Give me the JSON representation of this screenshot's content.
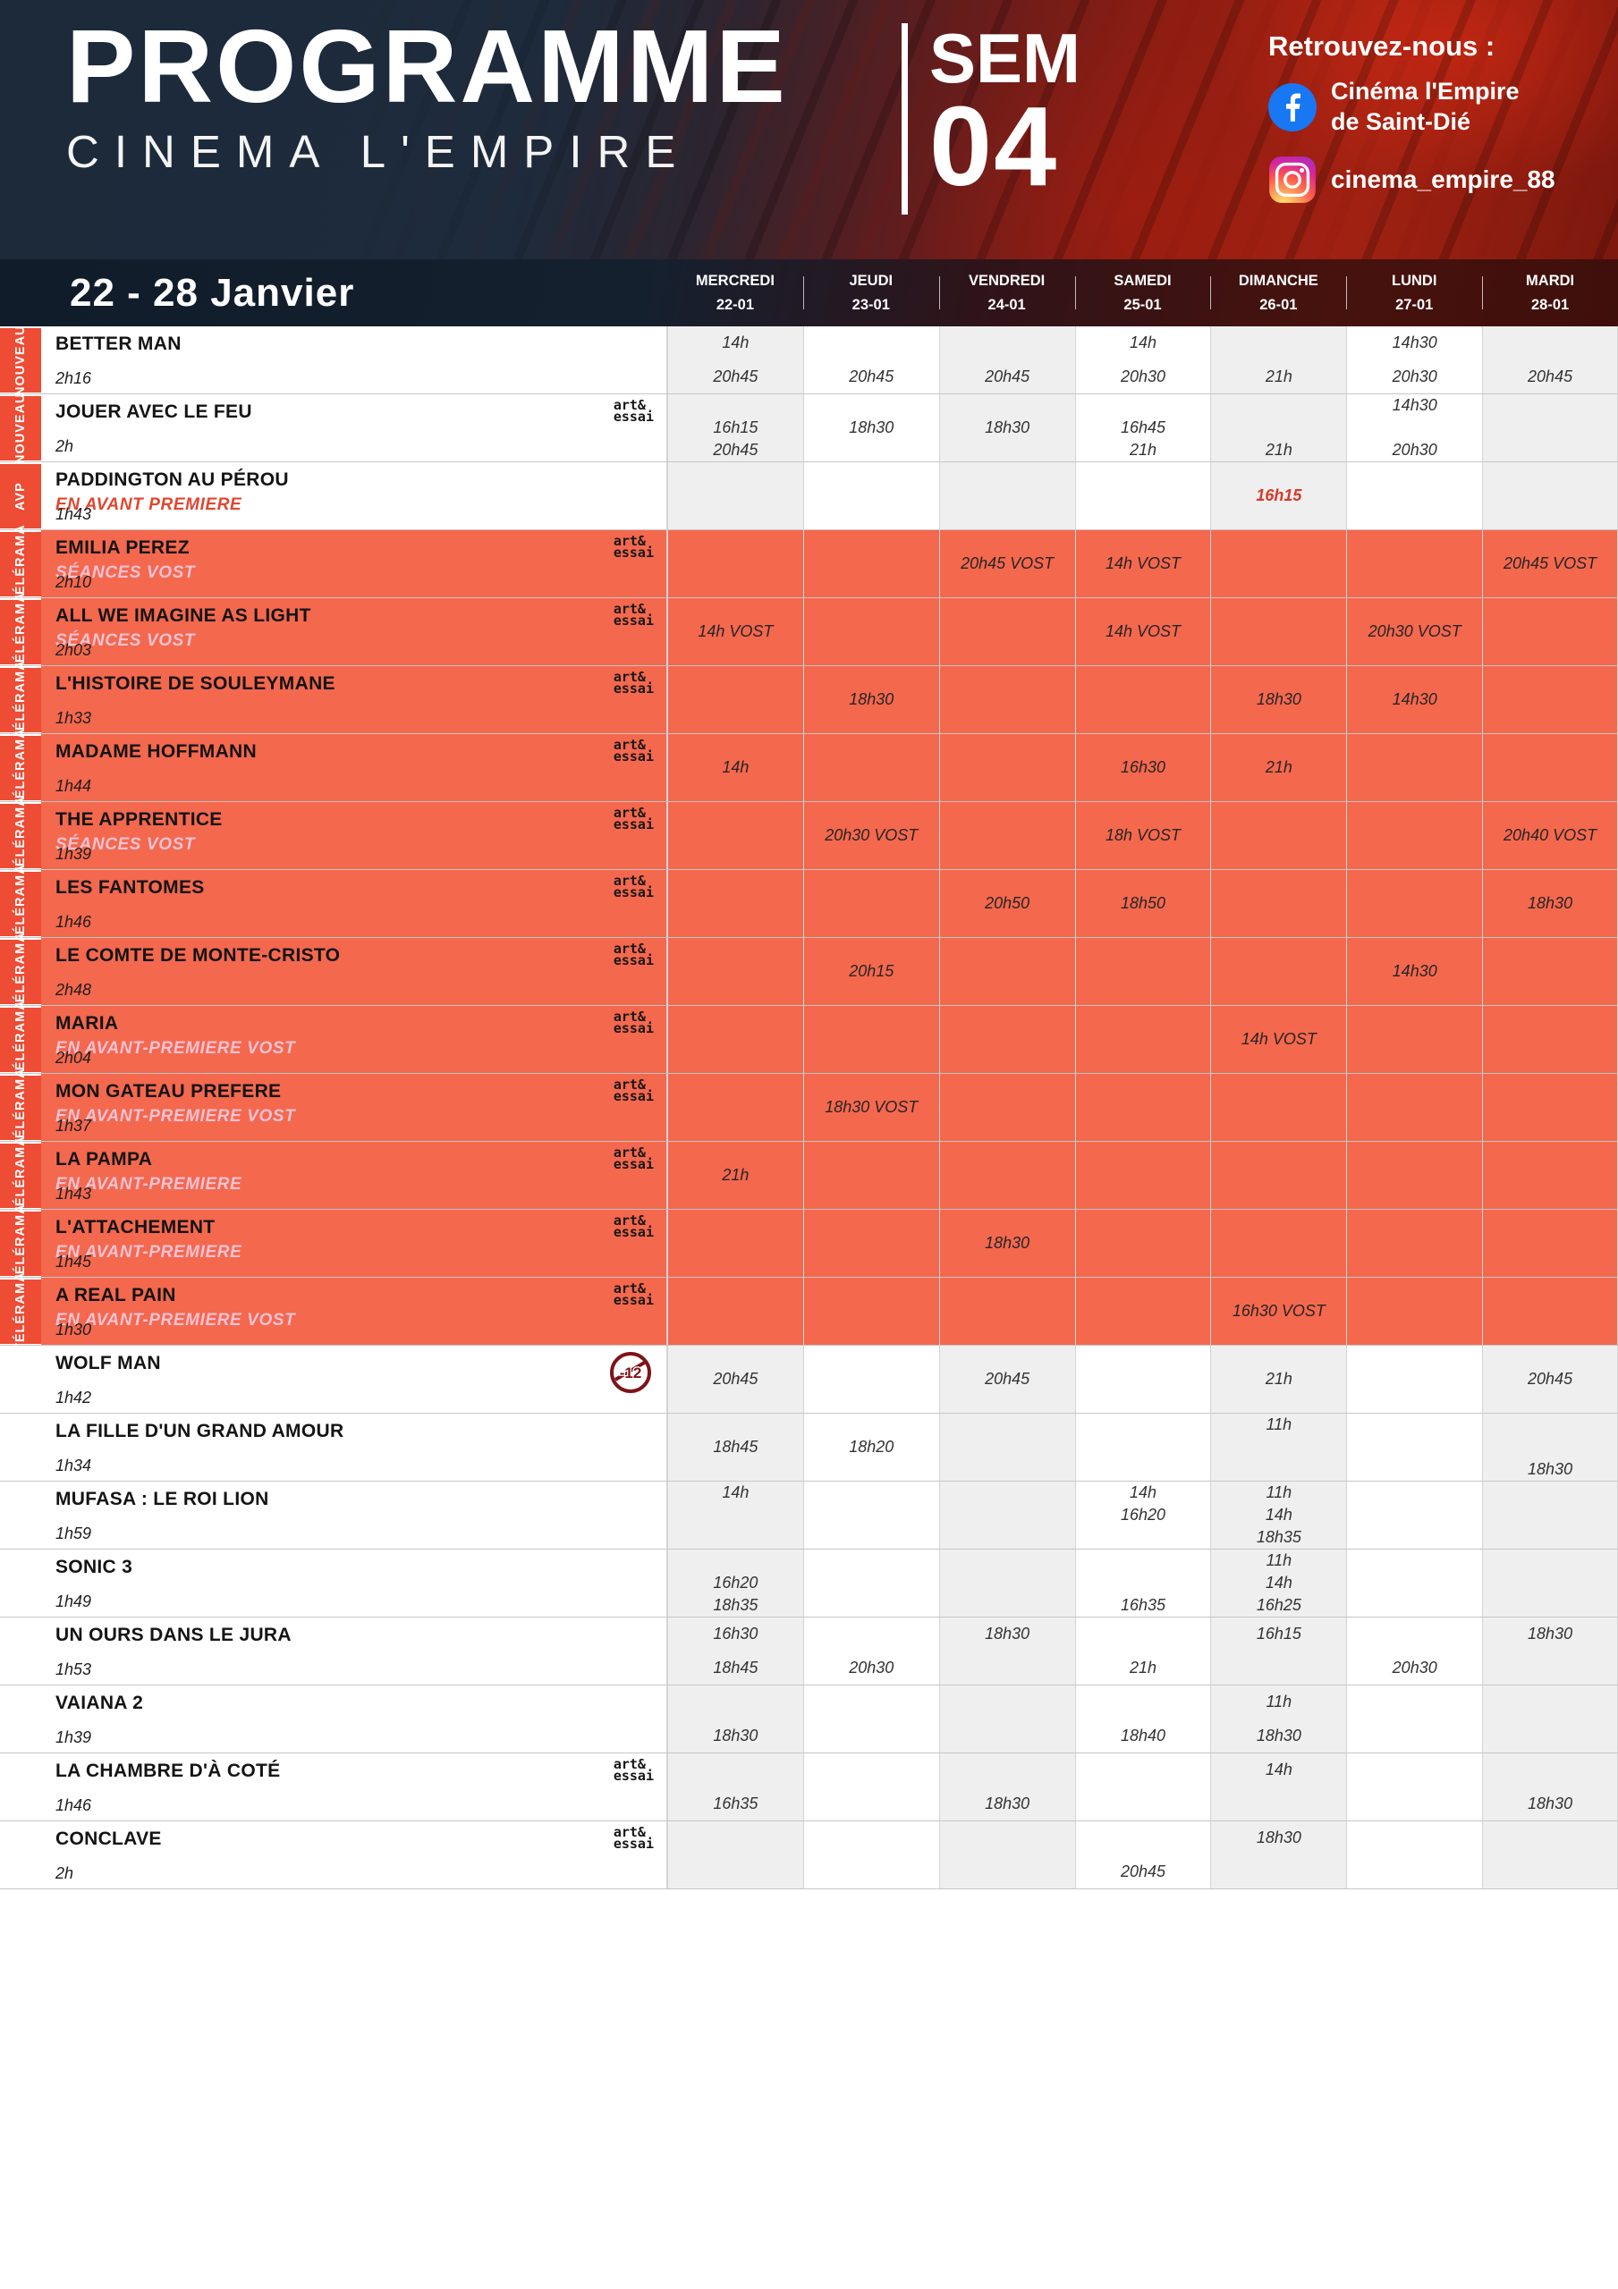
{
  "header": {
    "title": "PROGRAMME",
    "subtitle": "CINEMA L'EMPIRE",
    "week_label": "SEM",
    "week_number": "04",
    "social_heading": "Retrouvez-nous :",
    "facebook_lines": [
      "Cinéma l'Empire",
      "de Saint-Dié"
    ],
    "instagram_name": "cinema_empire_88"
  },
  "date_range": "22 - 28 Janvier",
  "days": [
    {
      "name": "MERCREDI",
      "date": "22-01"
    },
    {
      "name": "JEUDI",
      "date": "23-01"
    },
    {
      "name": "VENDREDI",
      "date": "24-01"
    },
    {
      "name": "SAMEDI",
      "date": "25-01"
    },
    {
      "name": "DIMANCHE",
      "date": "26-01"
    },
    {
      "name": "LUNDI",
      "date": "27-01"
    },
    {
      "name": "MARDI",
      "date": "28-01"
    }
  ],
  "art_essai_label": [
    "art&",
    "essai"
  ],
  "colors": {
    "coral_row": "#f4684e",
    "tag_red": "#ee4c35",
    "navy": "#1d2b3b",
    "accent_red": "#d63a28",
    "subtitle_pink": "#f8c2d2",
    "facebook_blue": "#1877f2"
  },
  "films": [
    {
      "title": "BETTER MAN",
      "tag": "NOUVEAU",
      "subtitle": "",
      "duration": "2h16",
      "art_essai": false,
      "rating": "",
      "section": "white",
      "highlight": false,
      "times": [
        [
          "14h",
          "20h45"
        ],
        [
          "",
          "20h45"
        ],
        [
          "",
          "20h45"
        ],
        [
          "14h",
          "20h30"
        ],
        [
          "",
          "21h"
        ],
        [
          "14h30",
          "20h30"
        ],
        [
          "",
          "20h45"
        ]
      ]
    },
    {
      "title": "JOUER AVEC LE FEU",
      "tag": "NOUVEAU",
      "subtitle": "",
      "duration": "2h",
      "art_essai": true,
      "rating": "",
      "section": "white",
      "highlight": false,
      "times": [
        [
          "",
          "16h15",
          "20h45"
        ],
        [
          "",
          "18h30",
          ""
        ],
        [
          "",
          "18h30",
          ""
        ],
        [
          "",
          "16h45",
          "21h"
        ],
        [
          "",
          "",
          "21h"
        ],
        [
          "14h30",
          "",
          "20h30"
        ],
        [
          "",
          "",
          ""
        ]
      ]
    },
    {
      "title": "PADDINGTON AU PÉROU",
      "tag": "AVP",
      "subtitle": "EN AVANT PREMIERE",
      "duration": "1h43",
      "art_essai": false,
      "rating": "",
      "section": "white",
      "highlight": true,
      "times": [
        [
          ""
        ],
        [
          ""
        ],
        [
          ""
        ],
        [
          ""
        ],
        [
          "16h15"
        ],
        [
          ""
        ],
        [
          ""
        ]
      ]
    },
    {
      "title": "EMILIA PEREZ",
      "tag": "TÉLÉRAMA",
      "subtitle": "SÉANCES VOST",
      "duration": "2h10",
      "art_essai": true,
      "rating": "",
      "section": "coral",
      "highlight": false,
      "times": [
        [
          ""
        ],
        [
          ""
        ],
        [
          "20h45 VOST"
        ],
        [
          "14h VOST"
        ],
        [
          ""
        ],
        [
          ""
        ],
        [
          "20h45 VOST"
        ]
      ]
    },
    {
      "title": "ALL WE IMAGINE AS LIGHT",
      "tag": "TÉLÉRAMA",
      "subtitle": "SÉANCES VOST",
      "duration": "2h03",
      "art_essai": true,
      "rating": "",
      "section": "coral",
      "highlight": false,
      "times": [
        [
          "14h VOST"
        ],
        [
          ""
        ],
        [
          ""
        ],
        [
          "14h VOST"
        ],
        [
          ""
        ],
        [
          "20h30 VOST"
        ],
        [
          ""
        ]
      ]
    },
    {
      "title": "L'HISTOIRE DE SOULEYMANE",
      "tag": "TÉLÉRAMA",
      "subtitle": "",
      "duration": "1h33",
      "art_essai": true,
      "rating": "",
      "section": "coral",
      "highlight": false,
      "times": [
        [
          ""
        ],
        [
          "18h30"
        ],
        [
          ""
        ],
        [
          ""
        ],
        [
          "18h30"
        ],
        [
          "14h30"
        ],
        [
          ""
        ]
      ]
    },
    {
      "title": "MADAME HOFFMANN",
      "tag": "TÉLÉRAMA",
      "subtitle": "",
      "duration": "1h44",
      "art_essai": true,
      "rating": "",
      "section": "coral",
      "highlight": false,
      "times": [
        [
          "14h"
        ],
        [
          ""
        ],
        [
          ""
        ],
        [
          "16h30"
        ],
        [
          "21h"
        ],
        [
          ""
        ],
        [
          ""
        ]
      ]
    },
    {
      "title": "THE APPRENTICE",
      "tag": "TÉLÉRAMA",
      "subtitle": "SÉANCES VOST",
      "duration": "1h39",
      "art_essai": true,
      "rating": "",
      "section": "coral",
      "highlight": false,
      "times": [
        [
          ""
        ],
        [
          "20h30 VOST"
        ],
        [
          ""
        ],
        [
          "18h VOST"
        ],
        [
          ""
        ],
        [
          ""
        ],
        [
          "20h40 VOST"
        ]
      ]
    },
    {
      "title": "LES FANTOMES",
      "tag": "TÉLÉRAMA",
      "subtitle": "",
      "duration": "1h46",
      "art_essai": true,
      "rating": "",
      "section": "coral",
      "highlight": false,
      "times": [
        [
          ""
        ],
        [
          ""
        ],
        [
          "20h50"
        ],
        [
          "18h50"
        ],
        [
          ""
        ],
        [
          ""
        ],
        [
          "18h30"
        ]
      ]
    },
    {
      "title": "LE COMTE DE MONTE-CRISTO",
      "tag": "TÉLÉRAMA",
      "subtitle": "",
      "duration": "2h48",
      "art_essai": true,
      "rating": "",
      "section": "coral",
      "highlight": false,
      "times": [
        [
          ""
        ],
        [
          "20h15"
        ],
        [
          ""
        ],
        [
          ""
        ],
        [
          ""
        ],
        [
          "14h30"
        ],
        [
          ""
        ]
      ]
    },
    {
      "title": "MARIA",
      "tag": "TÉLÉRAMA",
      "subtitle": "EN AVANT-PREMIERE VOST",
      "duration": "2h04",
      "art_essai": true,
      "rating": "",
      "section": "coral",
      "highlight": false,
      "times": [
        [
          ""
        ],
        [
          ""
        ],
        [
          ""
        ],
        [
          ""
        ],
        [
          "14h VOST"
        ],
        [
          ""
        ],
        [
          ""
        ]
      ]
    },
    {
      "title": "MON GATEAU PREFERE",
      "tag": "TÉLÉRAMA",
      "subtitle": "EN AVANT-PREMIERE VOST",
      "duration": "1h37",
      "art_essai": true,
      "rating": "",
      "section": "coral",
      "highlight": false,
      "times": [
        [
          ""
        ],
        [
          "18h30 VOST"
        ],
        [
          ""
        ],
        [
          ""
        ],
        [
          ""
        ],
        [
          ""
        ],
        [
          ""
        ]
      ]
    },
    {
      "title": "LA PAMPA",
      "tag": "TÉLÉRAMA",
      "subtitle": "EN AVANT-PREMIERE",
      "duration": "1h43",
      "art_essai": true,
      "rating": "",
      "section": "coral",
      "highlight": false,
      "times": [
        [
          "21h"
        ],
        [
          ""
        ],
        [
          ""
        ],
        [
          ""
        ],
        [
          ""
        ],
        [
          ""
        ],
        [
          ""
        ]
      ]
    },
    {
      "title": "L'ATTACHEMENT",
      "tag": "TÉLÉRAMA",
      "subtitle": "EN AVANT-PREMIERE",
      "duration": "1h45",
      "art_essai": true,
      "rating": "",
      "section": "coral",
      "highlight": false,
      "times": [
        [
          ""
        ],
        [
          ""
        ],
        [
          "18h30"
        ],
        [
          ""
        ],
        [
          ""
        ],
        [
          ""
        ],
        [
          ""
        ]
      ]
    },
    {
      "title": "A REAL PAIN",
      "tag": "TÉLÉRAMA",
      "subtitle": "EN AVANT-PREMIERE VOST",
      "duration": "1h30",
      "art_essai": true,
      "rating": "",
      "section": "coral",
      "highlight": false,
      "times": [
        [
          ""
        ],
        [
          ""
        ],
        [
          ""
        ],
        [
          ""
        ],
        [
          "16h30 VOST"
        ],
        [
          ""
        ],
        [
          ""
        ]
      ]
    },
    {
      "title": "WOLF MAN",
      "tag": "",
      "subtitle": "",
      "duration": "1h42",
      "art_essai": false,
      "rating": "-12",
      "section": "white",
      "highlight": false,
      "times": [
        [
          "20h45"
        ],
        [
          ""
        ],
        [
          "20h45"
        ],
        [
          ""
        ],
        [
          "21h"
        ],
        [
          ""
        ],
        [
          "20h45"
        ]
      ]
    },
    {
      "title": "LA FILLE D'UN GRAND AMOUR",
      "tag": "",
      "subtitle": "",
      "duration": "1h34",
      "art_essai": false,
      "rating": "",
      "section": "white",
      "highlight": false,
      "times": [
        [
          "",
          "18h45",
          ""
        ],
        [
          "",
          "18h20",
          ""
        ],
        [
          "",
          "",
          ""
        ],
        [
          "",
          "",
          ""
        ],
        [
          "11h",
          "",
          ""
        ],
        [
          "",
          "",
          ""
        ],
        [
          "",
          "",
          "18h30"
        ]
      ]
    },
    {
      "title": "MUFASA : LE ROI LION",
      "tag": "",
      "subtitle": "",
      "duration": "1h59",
      "art_essai": false,
      "rating": "",
      "section": "white",
      "highlight": false,
      "times": [
        [
          "14h",
          "",
          ""
        ],
        [
          "",
          "",
          ""
        ],
        [
          "",
          "",
          ""
        ],
        [
          "14h",
          "16h20",
          ""
        ],
        [
          "11h",
          "14h",
          "18h35"
        ],
        [
          "",
          "",
          ""
        ],
        [
          "",
          "",
          ""
        ]
      ]
    },
    {
      "title": "SONIC 3",
      "tag": "",
      "subtitle": "",
      "duration": "1h49",
      "art_essai": false,
      "rating": "",
      "section": "white",
      "highlight": false,
      "times": [
        [
          "",
          "16h20",
          "18h35"
        ],
        [
          "",
          "",
          ""
        ],
        [
          "",
          "",
          ""
        ],
        [
          "",
          "",
          "16h35"
        ],
        [
          "11h",
          "14h",
          "16h25"
        ],
        [
          "",
          "",
          ""
        ],
        [
          "",
          "",
          ""
        ]
      ]
    },
    {
      "title": "UN OURS DANS LE JURA",
      "tag": "",
      "subtitle": "",
      "duration": "1h53",
      "art_essai": false,
      "rating": "",
      "section": "white",
      "highlight": false,
      "times": [
        [
          "16h30",
          "18h45"
        ],
        [
          "",
          "20h30"
        ],
        [
          "18h30",
          ""
        ],
        [
          "",
          "21h"
        ],
        [
          "16h15",
          ""
        ],
        [
          "",
          "20h30"
        ],
        [
          "18h30",
          ""
        ]
      ]
    },
    {
      "title": "VAIANA 2",
      "tag": "",
      "subtitle": "",
      "duration": "1h39",
      "art_essai": false,
      "rating": "",
      "section": "white",
      "highlight": false,
      "times": [
        [
          "",
          "18h30"
        ],
        [
          "",
          ""
        ],
        [
          "",
          ""
        ],
        [
          "",
          "18h40"
        ],
        [
          "11h",
          "18h30"
        ],
        [
          "",
          ""
        ],
        [
          "",
          ""
        ]
      ]
    },
    {
      "title": "LA CHAMBRE D'À COTÉ",
      "tag": "",
      "subtitle": "",
      "duration": "1h46",
      "art_essai": true,
      "rating": "",
      "section": "white",
      "highlight": false,
      "times": [
        [
          "",
          "16h35"
        ],
        [
          "",
          ""
        ],
        [
          "",
          "18h30"
        ],
        [
          "",
          ""
        ],
        [
          "14h",
          ""
        ],
        [
          "",
          ""
        ],
        [
          "",
          "18h30"
        ]
      ]
    },
    {
      "title": "CONCLAVE",
      "tag": "",
      "subtitle": "",
      "duration": "2h",
      "art_essai": true,
      "rating": "",
      "section": "white",
      "highlight": false,
      "times": [
        [
          "",
          ""
        ],
        [
          "",
          ""
        ],
        [
          "",
          ""
        ],
        [
          "",
          "20h45"
        ],
        [
          "18h30",
          ""
        ],
        [
          "",
          ""
        ],
        [
          "",
          ""
        ]
      ]
    }
  ]
}
